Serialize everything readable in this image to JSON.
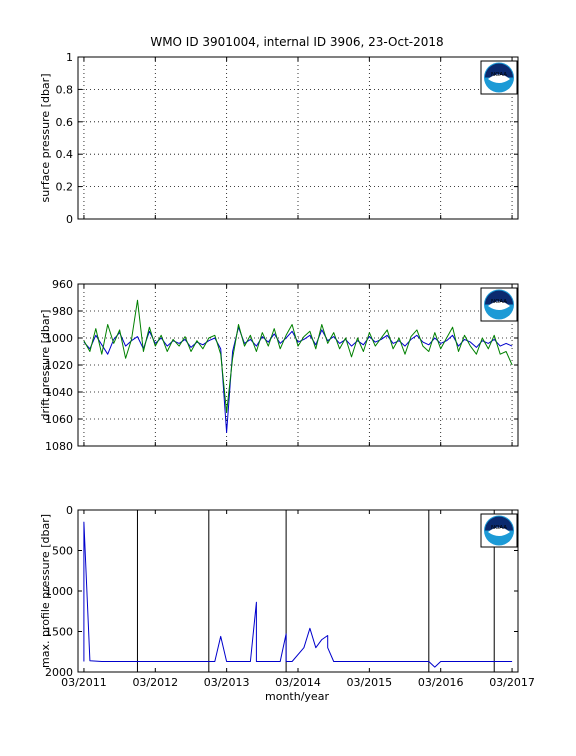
{
  "figure": {
    "title": "WMO ID 3901004, internal ID 3906, 23-Oct-2018",
    "xlabel": "month/year",
    "x_tick_labels": [
      "03/2011",
      "03/2012",
      "03/2013",
      "03/2014",
      "03/2015",
      "03/2016",
      "03/2017"
    ],
    "logo_text": "NOAA",
    "colors": {
      "blue": "#0000cc",
      "green": "#008000",
      "axis": "#000000"
    }
  },
  "chart_data": [
    {
      "type": "line",
      "ylabel": "surface pressure [dbar]",
      "ylim": [
        0,
        1
      ],
      "y_ticks": [
        0,
        0.2,
        0.4,
        0.6,
        0.8,
        1
      ],
      "y_tick_labels": [
        "0",
        "0.2",
        "0.4",
        "0.6",
        "0.8",
        "1"
      ],
      "x_ticks": [
        "03/2011",
        "03/2012",
        "03/2013",
        "03/2014",
        "03/2015",
        "03/2016",
        "03/2017"
      ],
      "grid": true,
      "series": []
    },
    {
      "type": "line",
      "ylabel": "drift pressure [dbar]",
      "ylim": [
        960,
        1080
      ],
      "y_reversed": true,
      "y_ticks": [
        960,
        980,
        1000,
        1020,
        1040,
        1060,
        1080
      ],
      "y_tick_labels": [
        "960",
        "980",
        "1000",
        "1020",
        "1040",
        "1060",
        "1080"
      ],
      "grid": true,
      "series": [
        {
          "color": "blue",
          "x": [
            "2011-03",
            "2011-04",
            "2011-05",
            "2011-06",
            "2011-07",
            "2011-08",
            "2011-09",
            "2011-10",
            "2011-11",
            "2011-12",
            "2012-01",
            "2012-02",
            "2012-03",
            "2012-04",
            "2012-05",
            "2012-06",
            "2012-07",
            "2012-08",
            "2012-09",
            "2012-10",
            "2012-11",
            "2012-12",
            "2013-01",
            "2013-02",
            "2013-03",
            "2013-04",
            "2013-05",
            "2013-06",
            "2013-07",
            "2013-08",
            "2013-09",
            "2013-10",
            "2013-11",
            "2013-12",
            "2014-01",
            "2014-02",
            "2014-03",
            "2014-04",
            "2014-05",
            "2014-06",
            "2014-07",
            "2014-08",
            "2014-09",
            "2014-10",
            "2014-11",
            "2014-12",
            "2015-01",
            "2015-02",
            "2015-03",
            "2015-04",
            "2015-05",
            "2015-06",
            "2015-07",
            "2015-08",
            "2015-09",
            "2015-10",
            "2015-11",
            "2015-12",
            "2016-01",
            "2016-02",
            "2016-03",
            "2016-04",
            "2016-05",
            "2016-06",
            "2016-07",
            "2016-08",
            "2016-09",
            "2016-10",
            "2016-11",
            "2016-12",
            "2017-01",
            "2017-02",
            "2017-03"
          ],
          "values": [
            1003,
            1008,
            998,
            1005,
            1012,
            1001,
            996,
            1006,
            1002,
            999,
            1008,
            995,
            1004,
            1000,
            1006,
            1002,
            1004,
            1001,
            1007,
            1003,
            1005,
            1002,
            1000,
            1008,
            1070,
            1010,
            992,
            1004,
            1001,
            1006,
            999,
            1003,
            997,
            1004,
            1000,
            995,
            1003,
            1001,
            998,
            1005,
            994,
            1002,
            999,
            1004,
            1001,
            1006,
            1002,
            1005,
            999,
            1003,
            1001,
            998,
            1004,
            1002,
            1006,
            1001,
            998,
            1003,
            1005,
            1000,
            1004,
            1002,
            998,
            1006,
            1001,
            1003,
            1007,
            1002,
            1004,
            1001,
            1006,
            1004,
            1006
          ]
        },
        {
          "color": "green",
          "x": [
            "2011-03",
            "2011-04",
            "2011-05",
            "2011-06",
            "2011-07",
            "2011-08",
            "2011-09",
            "2011-10",
            "2011-11",
            "2011-12",
            "2012-01",
            "2012-02",
            "2012-03",
            "2012-04",
            "2012-05",
            "2012-06",
            "2012-07",
            "2012-08",
            "2012-09",
            "2012-10",
            "2012-11",
            "2012-12",
            "2013-01",
            "2013-02",
            "2013-03",
            "2013-04",
            "2013-05",
            "2013-06",
            "2013-07",
            "2013-08",
            "2013-09",
            "2013-10",
            "2013-11",
            "2013-12",
            "2014-01",
            "2014-02",
            "2014-03",
            "2014-04",
            "2014-05",
            "2014-06",
            "2014-07",
            "2014-08",
            "2014-09",
            "2014-10",
            "2014-11",
            "2014-12",
            "2015-01",
            "2015-02",
            "2015-03",
            "2015-04",
            "2015-05",
            "2015-06",
            "2015-07",
            "2015-08",
            "2015-09",
            "2015-10",
            "2015-11",
            "2015-12",
            "2016-01",
            "2016-02",
            "2016-03",
            "2016-04",
            "2016-05",
            "2016-06",
            "2016-07",
            "2016-08",
            "2016-09",
            "2016-10",
            "2016-11",
            "2016-12",
            "2017-01",
            "2017-02",
            "2017-03"
          ],
          "values": [
            1002,
            1010,
            993,
            1012,
            990,
            1004,
            994,
            1015,
            1001,
            972,
            1010,
            992,
            1006,
            998,
            1010,
            1001,
            1006,
            999,
            1010,
            1002,
            1008,
            1000,
            998,
            1012,
            1055,
            1015,
            990,
            1006,
            998,
            1010,
            996,
            1006,
            993,
            1008,
            998,
            990,
            1006,
            999,
            995,
            1008,
            990,
            1004,
            996,
            1008,
            1000,
            1014,
            1000,
            1010,
            996,
            1006,
            1000,
            994,
            1008,
            1000,
            1012,
            999,
            994,
            1006,
            1010,
            996,
            1008,
            1000,
            992,
            1010,
            998,
            1006,
            1012,
            1000,
            1008,
            998,
            1012,
            1010,
            1020
          ]
        }
      ]
    },
    {
      "type": "line",
      "ylabel": "max. profile pressure [dbar]",
      "ylim": [
        0,
        2000
      ],
      "y_reversed": true,
      "y_ticks": [
        0,
        500,
        1000,
        1500,
        2000
      ],
      "y_tick_labels": [
        "0",
        "500",
        "1000",
        "1500",
        "2000"
      ],
      "grid": false,
      "vertical_lines": [
        "2011-12",
        "2012-12",
        "2014-01",
        "2016-01",
        "2016-12"
      ],
      "series": [
        {
          "color": "blue",
          "x": [
            "2011-03",
            "2011-03",
            "2011-04",
            "2011-06",
            "2012-06",
            "2013-01",
            "2013-02",
            "2013-03",
            "2013-04",
            "2013-07",
            "2013-08",
            "2013-08",
            "2013-09",
            "2013-12",
            "2014-01",
            "2014-01",
            "2014-02",
            "2014-04",
            "2014-05",
            "2014-06",
            "2014-07",
            "2014-08",
            "2014-08",
            "2014-09",
            "2014-10",
            "2014-11",
            "2014-12",
            "2015-06",
            "2016-01",
            "2016-02",
            "2016-03",
            "2016-06",
            "2017-03"
          ],
          "values": [
            1870,
            150,
            1860,
            1870,
            1870,
            1870,
            1560,
            1870,
            1870,
            1870,
            1140,
            1870,
            1870,
            1870,
            1530,
            1870,
            1870,
            1700,
            1460,
            1700,
            1600,
            1550,
            1700,
            1870,
            1870,
            1870,
            1870,
            1870,
            1870,
            1940,
            1870,
            1870,
            1870
          ]
        }
      ]
    }
  ]
}
